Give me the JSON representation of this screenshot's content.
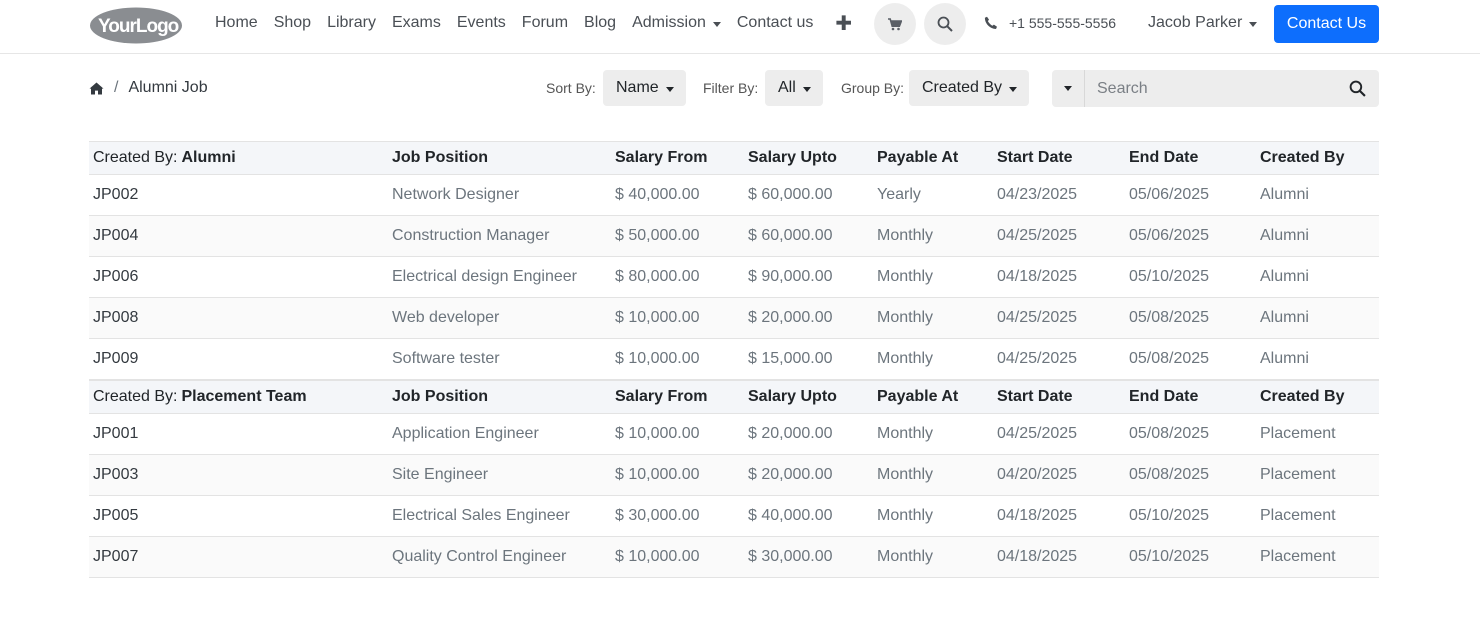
{
  "header": {
    "logo_text": "YourLogo",
    "nav": [
      {
        "label": "Home",
        "dropdown": false
      },
      {
        "label": "Shop",
        "dropdown": false
      },
      {
        "label": "Library",
        "dropdown": false
      },
      {
        "label": "Exams",
        "dropdown": false
      },
      {
        "label": "Events",
        "dropdown": false
      },
      {
        "label": "Forum",
        "dropdown": false
      },
      {
        "label": "Blog",
        "dropdown": false
      },
      {
        "label": "Admission",
        "dropdown": true
      },
      {
        "label": "Contact us",
        "dropdown": false
      }
    ],
    "phone": "+1 555-555-5556",
    "user_name": "Jacob Parker",
    "cta_label": "Contact Us",
    "icons": {
      "cart": "cart-icon",
      "search": "search-icon",
      "phone": "phone-icon",
      "plus": "plus-icon"
    }
  },
  "toolbar": {
    "breadcrumb_current": "Alumni Job",
    "sort_label": "Sort By:",
    "sort_value": "Name",
    "filter_label": "Filter By:",
    "filter_value": "All",
    "group_label": "Group By:",
    "group_value": "Created By",
    "search_placeholder": "Search"
  },
  "table": {
    "columns": [
      "Job Position",
      "Salary From",
      "Salary Upto",
      "Payable At",
      "Start Date",
      "End Date",
      "Created By"
    ],
    "group_prefix": "Created By:",
    "groups": [
      {
        "name": "Alumni",
        "rows": [
          [
            "JP002",
            "Network Designer",
            "$ 40,000.00",
            "$ 60,000.00",
            "Yearly",
            "04/23/2025",
            "05/06/2025",
            "Alumni"
          ],
          [
            "JP004",
            "Construction Manager",
            "$ 50,000.00",
            "$ 60,000.00",
            "Monthly",
            "04/25/2025",
            "05/06/2025",
            "Alumni"
          ],
          [
            "JP006",
            "Electrical design Engineer",
            "$ 80,000.00",
            "$ 90,000.00",
            "Monthly",
            "04/18/2025",
            "05/10/2025",
            "Alumni"
          ],
          [
            "JP008",
            "Web developer",
            "$ 10,000.00",
            "$ 20,000.00",
            "Monthly",
            "04/25/2025",
            "05/08/2025",
            "Alumni"
          ],
          [
            "JP009",
            "Software tester",
            "$ 10,000.00",
            "$ 15,000.00",
            "Monthly",
            "04/25/2025",
            "05/08/2025",
            "Alumni"
          ]
        ]
      },
      {
        "name": "Placement Team",
        "rows": [
          [
            "JP001",
            "Application Engineer",
            "$ 10,000.00",
            "$ 20,000.00",
            "Monthly",
            "04/25/2025",
            "05/08/2025",
            "Placement"
          ],
          [
            "JP003",
            "Site Engineer",
            "$ 10,000.00",
            "$ 20,000.00",
            "Monthly",
            "04/20/2025",
            "05/08/2025",
            "Placement"
          ],
          [
            "JP005",
            "Electrical Sales Engineer",
            "$ 30,000.00",
            "$ 40,000.00",
            "Monthly",
            "04/18/2025",
            "05/10/2025",
            "Placement"
          ],
          [
            "JP007",
            "Quality Control Engineer",
            "$ 10,000.00",
            "$ 30,000.00",
            "Monthly",
            "04/18/2025",
            "05/10/2025",
            "Placement"
          ]
        ]
      }
    ]
  },
  "colors": {
    "primary": "#0d6efd",
    "control_bg": "#ededed",
    "group_row_bg": "#f4f6f9"
  }
}
